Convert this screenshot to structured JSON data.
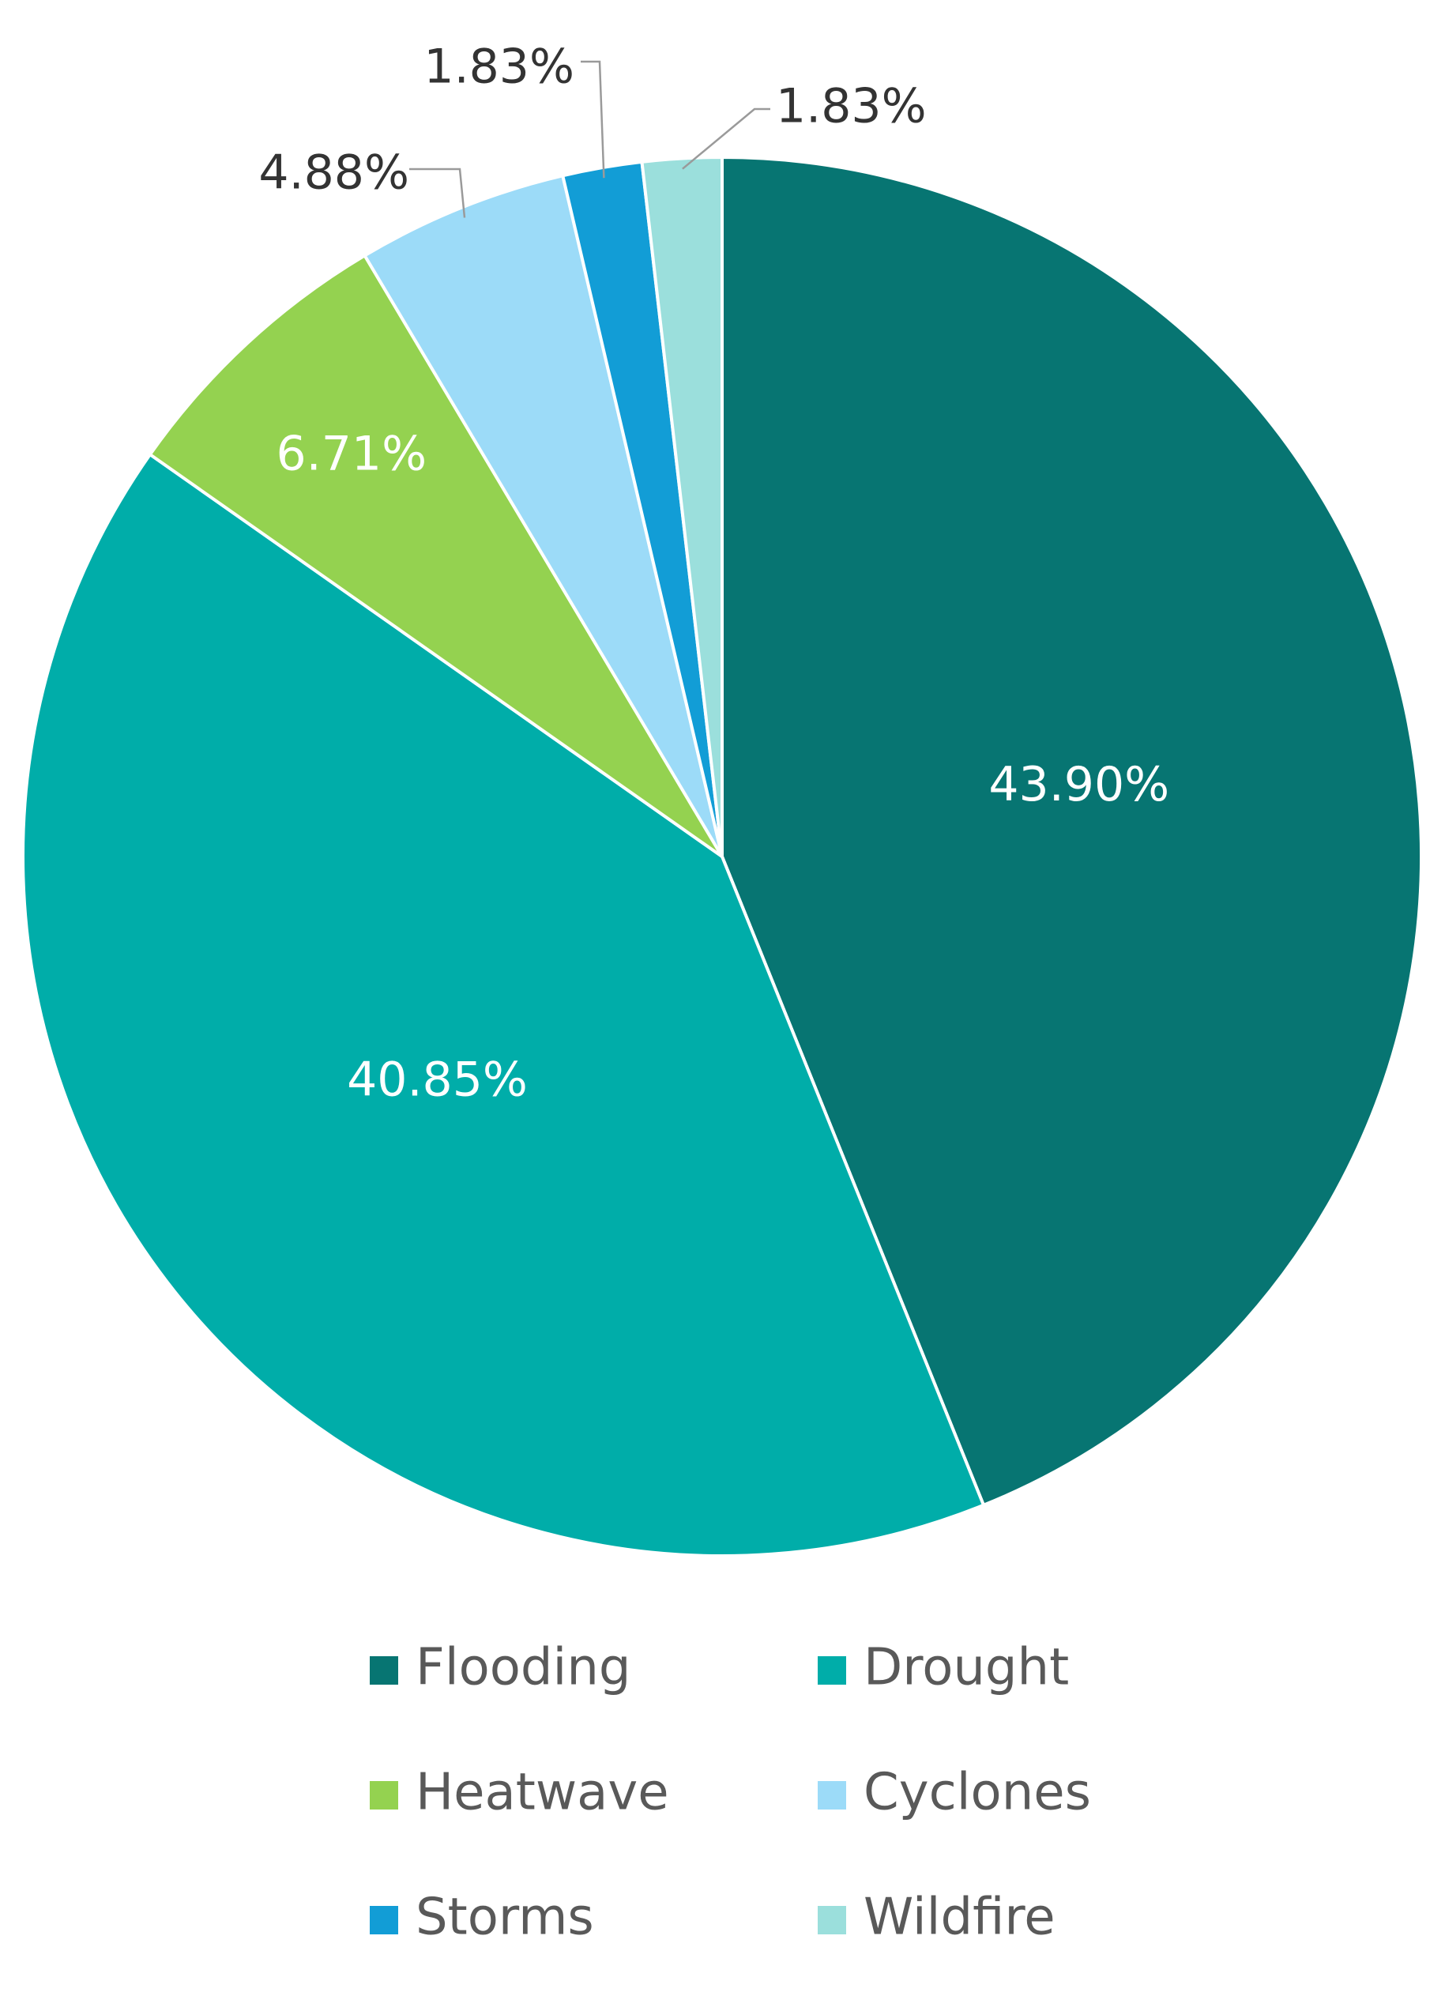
{
  "chart_data": {
    "type": "pie",
    "title": "",
    "categories": [
      "Flooding",
      "Drought",
      "Heatwave",
      "Cyclones",
      "Storms",
      "Wildfire"
    ],
    "values": [
      43.9,
      40.85,
      6.71,
      4.88,
      1.83,
      1.83
    ],
    "labels": [
      "43.90%",
      "40.85%",
      "6.71%",
      "4.88%",
      "1.83%",
      "1.83%"
    ],
    "colors": [
      "#077572",
      "#00ADA9",
      "#94D250",
      "#9CDBF8",
      "#129DD6",
      "#9BDFDC"
    ],
    "start_angle_deg": 0,
    "direction": "clockwise",
    "legend": {
      "position": "bottom",
      "columns": 2,
      "entries": [
        "Flooding",
        "Drought",
        "Heatwave",
        "Cyclones",
        "Storms",
        "Wildfire"
      ]
    }
  }
}
